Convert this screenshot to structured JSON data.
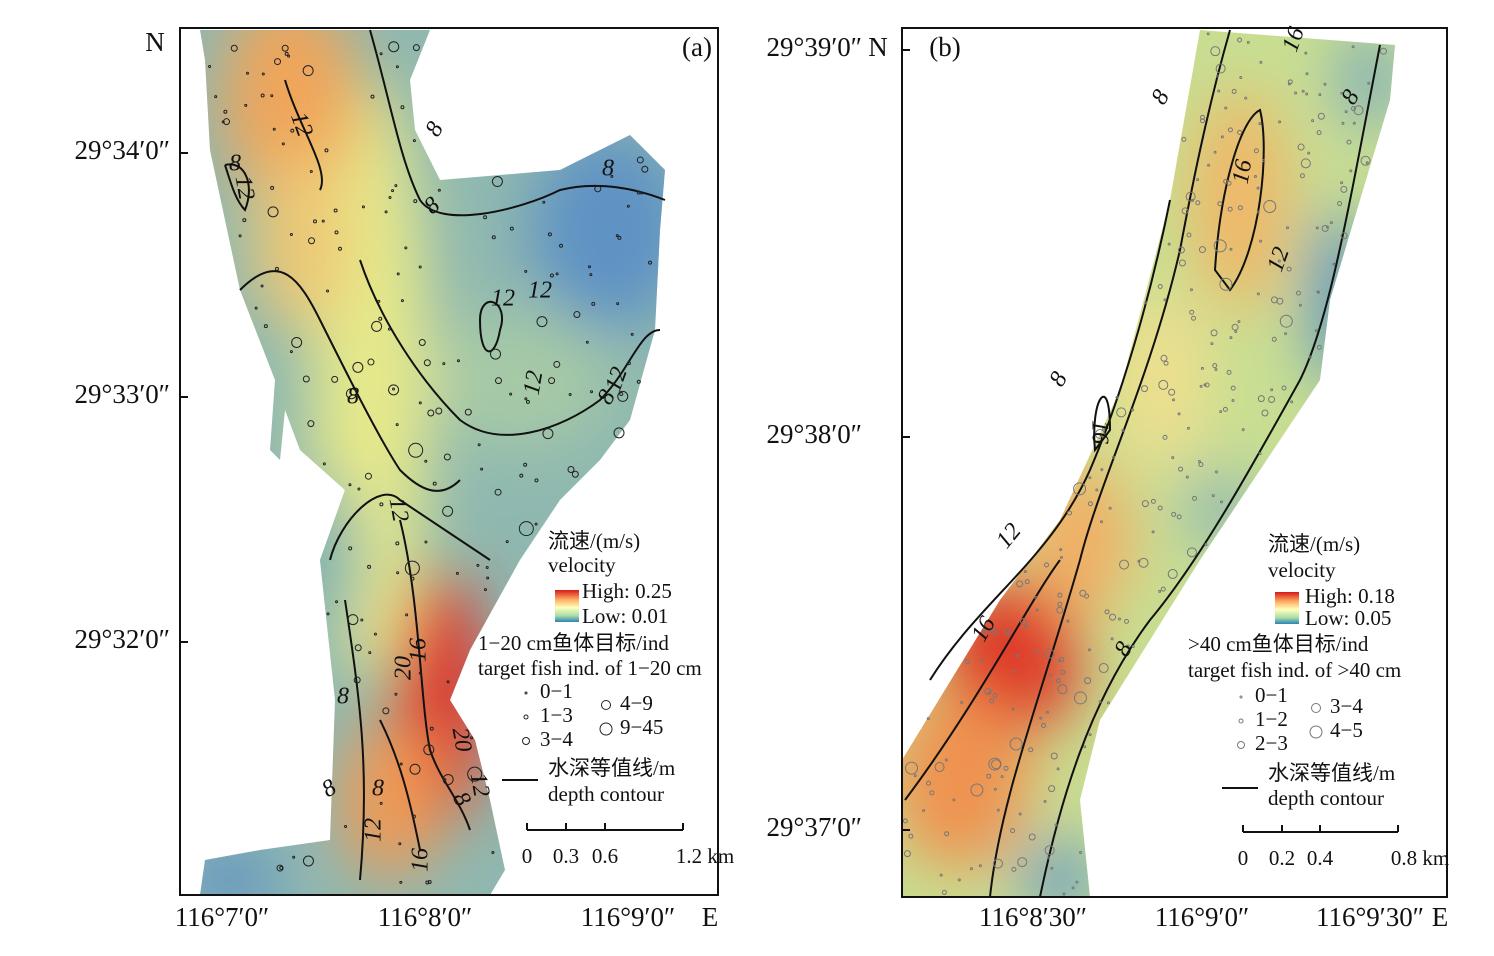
{
  "panels": [
    {
      "label": "(a)",
      "north": "N",
      "east": "E",
      "lat_ticks": [
        "29°34′0″",
        "29°33′0″",
        "29°32′0″"
      ],
      "lon_ticks": [
        "116°7′0″",
        "116°8′0″",
        "116°9′0″"
      ],
      "contour_labels": [
        "12",
        "8",
        "8",
        "12",
        "8",
        "8",
        "12",
        "12",
        "12",
        "12",
        "8",
        "8",
        "12",
        "16",
        "20",
        "8",
        "20",
        "12",
        "8",
        "8",
        "8",
        "12",
        "16"
      ],
      "legend": {
        "velocity_cn": "流速/(m/s)",
        "velocity_en": "velocity",
        "high": "High: 0.25",
        "low": "Low: 0.01",
        "fish_cn": "1−20 cm鱼体目标/ind",
        "fish_en": "target fish ind. of 1−20 cm",
        "fish_classes": [
          "0−1",
          "1−3",
          "3−4",
          "4−9",
          "9−45"
        ],
        "contour_cn": "水深等值线/m",
        "contour_en": "depth contour"
      },
      "scale": [
        "0",
        "0.3",
        "0.6",
        "1.2 km"
      ]
    },
    {
      "label": "(b)",
      "north": "N",
      "east": "E",
      "lat_ticks": [
        "29°39′0″",
        "29°38′0″",
        "29°37′0″"
      ],
      "lon_ticks": [
        "116°8′30″",
        "116°9′0″",
        "116°9′30″"
      ],
      "contour_labels": [
        "16",
        "8",
        "8",
        "16",
        "12",
        "8",
        "16",
        "12",
        "16",
        "8"
      ],
      "legend": {
        "velocity_cn": "流速/(m/s)",
        "velocity_en": "velocity",
        "high": "High: 0.18",
        "low": "Low: 0.05",
        "fish_cn": ">40 cm鱼体目标/ind",
        "fish_en": "target fish ind. of >40 cm",
        "fish_classes": [
          "0−1",
          "1−2",
          "2−3",
          "3−4",
          "4−5"
        ],
        "contour_cn": "水深等值线/m",
        "contour_en": "depth contour"
      },
      "scale": [
        "0",
        "0.2",
        "0.4",
        "0.8 km"
      ]
    }
  ]
}
